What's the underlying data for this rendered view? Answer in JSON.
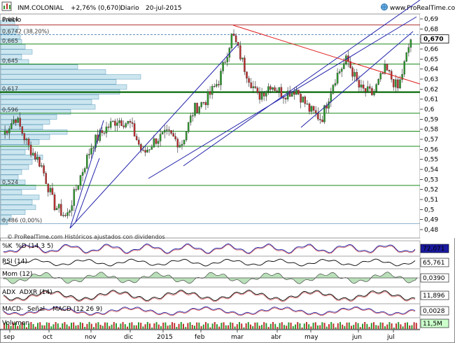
{
  "header": {
    "symbol": "INM.COLONIAL",
    "change": "+2,76% (0,670)",
    "period": "Diario",
    "date": "20-jul-2015",
    "site": "www.ProRealTime.com"
  },
  "main_panel": {
    "label": "Precio",
    "watermark": "© ProRealTime.com   Históricos ajustados con dividendos",
    "current_price_label": "0,670",
    "volume_profile_labels": [
      "0,684",
      "0,6742 (38,20%)",
      "0,665",
      "0,645",
      "0,617",
      "0,596",
      "0,524",
      "0,486 (0,00%)"
    ]
  },
  "indicators": [
    {
      "key": "stoch",
      "labels": [
        "%K",
        "%D (14 3 5)"
      ],
      "value": "72,071",
      "value_color": "#ffffff",
      "value_bg": "#1a1aa0"
    },
    {
      "key": "rsi",
      "labels": [
        "RSI (14)"
      ],
      "value": "65,761",
      "value_color": "#000000",
      "value_bg": "#ffffff"
    },
    {
      "key": "mom",
      "labels": [
        "Mom (12)"
      ],
      "value": "0,0390",
      "value_color": "#000000",
      "value_bg": "#ffffff"
    },
    {
      "key": "adx",
      "labels": [
        "ADX",
        "ADXR (14)"
      ],
      "value": "11,896",
      "value_color": "#000000",
      "value_bg": "#ffffff"
    },
    {
      "key": "macd",
      "labels": [
        "MACD-",
        "Señal",
        "MACD (12 26 9)"
      ],
      "value": "0,0028",
      "value_color": "#cc0000",
      "value_bg": "#ffffff"
    },
    {
      "key": "vol",
      "labels": [
        "Volumen"
      ],
      "value": "11,5M",
      "value_color": "#000000",
      "value_bg": "#ccffcc"
    }
  ],
  "colors": {
    "up": "#2e9a2e",
    "down": "#c03030",
    "channel": "#2222aa",
    "trend_red": "#e02020",
    "hline_green": "#1a8a1a",
    "profile_fill": "#cce6f0",
    "profile_stroke": "#5a9ab8"
  },
  "chart_data": {
    "type": "candlestick",
    "y_axis": {
      "min": 0.475,
      "max": 0.695,
      "ticks": [
        "0,69",
        "0,68",
        "0,67",
        "0,66",
        "0,65",
        "0,64",
        "0,63",
        "0,62",
        "0,61",
        "0,6",
        "0,59",
        "0,58",
        "0,57",
        "0,56",
        "0,55",
        "0,54",
        "0,53",
        "0,52",
        "0,51",
        "0,5",
        "0,49",
        "0,48"
      ]
    },
    "x_labels": [
      "sep",
      "oct",
      "nov",
      "dic",
      "2015",
      "feb",
      "mar",
      "abr",
      "may",
      "jun",
      "jul"
    ],
    "horizontal_levels": [
      0.684,
      0.6742,
      0.665,
      0.645,
      0.617,
      0.596,
      0.578,
      0.563,
      0.524,
      0.486
    ],
    "close_points": [
      {
        "date": "2014-09",
        "close": 0.575
      },
      {
        "date": "2014-09",
        "close": 0.592
      },
      {
        "date": "2014-10",
        "close": 0.563
      },
      {
        "date": "2014-10",
        "close": 0.545
      },
      {
        "date": "2014-10",
        "close": 0.505
      },
      {
        "date": "2014-10",
        "close": 0.492
      },
      {
        "date": "2014-11",
        "close": 0.53
      },
      {
        "date": "2014-11",
        "close": 0.565
      },
      {
        "date": "2014-11",
        "close": 0.58
      },
      {
        "date": "2014-12",
        "close": 0.59
      },
      {
        "date": "2014-12",
        "close": 0.585
      },
      {
        "date": "2014-12",
        "close": 0.555
      },
      {
        "date": "2015-01",
        "close": 0.57
      },
      {
        "date": "2015-01",
        "close": 0.575
      },
      {
        "date": "2015-01",
        "close": 0.565
      },
      {
        "date": "2015-02",
        "close": 0.6
      },
      {
        "date": "2015-02",
        "close": 0.61
      },
      {
        "date": "2015-02",
        "close": 0.63
      },
      {
        "date": "2015-03",
        "close": 0.675
      },
      {
        "date": "2015-03",
        "close": 0.64
      },
      {
        "date": "2015-03",
        "close": 0.612
      },
      {
        "date": "2015-04",
        "close": 0.625
      },
      {
        "date": "2015-04",
        "close": 0.615
      },
      {
        "date": "2015-04",
        "close": 0.62
      },
      {
        "date": "2015-05",
        "close": 0.6
      },
      {
        "date": "2015-05",
        "close": 0.59
      },
      {
        "date": "2015-05",
        "close": 0.63
      },
      {
        "date": "2015-06",
        "close": 0.65
      },
      {
        "date": "2015-06",
        "close": 0.62
      },
      {
        "date": "2015-06",
        "close": 0.615
      },
      {
        "date": "2015-07",
        "close": 0.64
      },
      {
        "date": "2015-07",
        "close": 0.62
      },
      {
        "date": "2015-07",
        "close": 0.67
      }
    ]
  }
}
